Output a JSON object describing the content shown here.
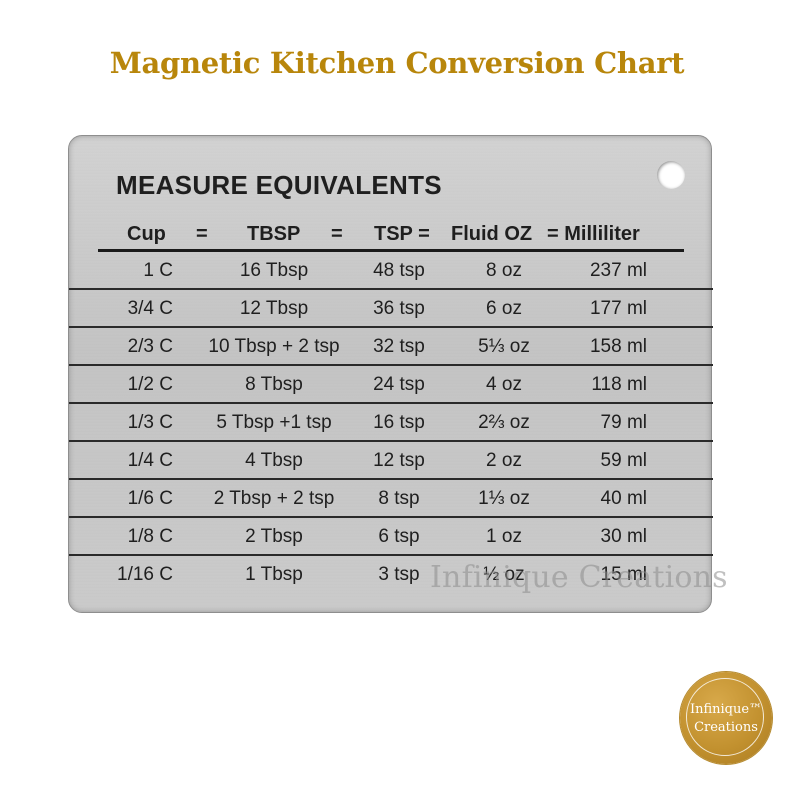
{
  "page": {
    "title": "Magnetic Kitchen Conversion Chart"
  },
  "plate": {
    "title": "MEASURE EQUIVALENTS",
    "headers": [
      "Cup",
      "=",
      "TBSP",
      "=",
      "TSP =",
      "Fluid OZ",
      "= Milliliter"
    ],
    "rows": [
      {
        "cup": "1 C",
        "tbsp": "16 Tbsp",
        "tsp": "48 tsp",
        "oz": "8 oz",
        "ml": "237 ml"
      },
      {
        "cup": "3/4 C",
        "tbsp": "12 Tbsp",
        "tsp": "36 tsp",
        "oz": "6 oz",
        "ml": "177 ml"
      },
      {
        "cup": "2/3 C",
        "tbsp": "10 Tbsp + 2 tsp",
        "tsp": "32 tsp",
        "oz": "5⅓ oz",
        "ml": "158 ml"
      },
      {
        "cup": "1/2 C",
        "tbsp": "8 Tbsp",
        "tsp": "24 tsp",
        "oz": "4 oz",
        "ml": "118 ml"
      },
      {
        "cup": "1/3 C",
        "tbsp": "5 Tbsp +1 tsp",
        "tsp": "16 tsp",
        "oz": "2⅔ oz",
        "ml": "79 ml"
      },
      {
        "cup": "1/4 C",
        "tbsp": "4 Tbsp",
        "tsp": "12 tsp",
        "oz": "2 oz",
        "ml": "59 ml"
      },
      {
        "cup": "1/6 C",
        "tbsp": "2 Tbsp + 2 tsp",
        "tsp": "8 tsp",
        "oz": "1⅓ oz",
        "ml": "40 ml"
      },
      {
        "cup": "1/8 C",
        "tbsp": "2 Tbsp",
        "tsp": "6 tsp",
        "oz": "1 oz",
        "ml": "30 ml"
      },
      {
        "cup": "1/16 C",
        "tbsp": "1 Tbsp",
        "tsp": "3 tsp",
        "oz": "½ oz",
        "ml": "15 ml"
      }
    ]
  },
  "watermark": "Infinique Creations",
  "logo": {
    "line1": "Infinique™",
    "line2": "Creations"
  },
  "colors": {
    "title": "#b8860b",
    "logo": "#c2912f",
    "plate": "#c8c8c8",
    "text": "#1f1f1f"
  }
}
